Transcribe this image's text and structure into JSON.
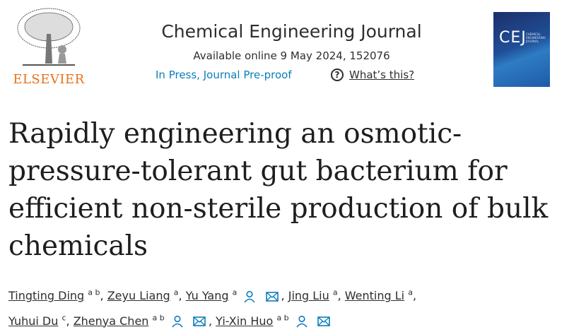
{
  "publisher": {
    "name": "ELSEVIER"
  },
  "journal": {
    "title": "Chemical Engineering Journal",
    "available": "Available online 9 May 2024, 152076",
    "status": "In Press, Journal Pre-proof",
    "help_label": "What’s this?",
    "cover_text": "CEJ",
    "cover_subtitle": "CHEMICAL ENGINEERING JOURNAL"
  },
  "article": {
    "title": "Rapidly engineering an osmotic-pressure-tolerant gut bacterium for efficient non-sterile production of bulk chemicals"
  },
  "authors": [
    {
      "name": "Tingting Ding",
      "aff": "a b"
    },
    {
      "name": "Zeyu Liang",
      "aff": "a"
    },
    {
      "name": "Yu Yang",
      "aff": "a"
    },
    {
      "name": "Jing Liu",
      "aff": "a"
    },
    {
      "name": "Wenting Li",
      "aff": "a"
    },
    {
      "name": "Yuhui Du",
      "aff": "c"
    },
    {
      "name": "Zhenya Chen",
      "aff": "a b"
    },
    {
      "name": "Yi-Xin Huo",
      "aff": "a b"
    }
  ],
  "colors": {
    "link": "#0c7dbb",
    "elsevier": "#e9711c"
  }
}
